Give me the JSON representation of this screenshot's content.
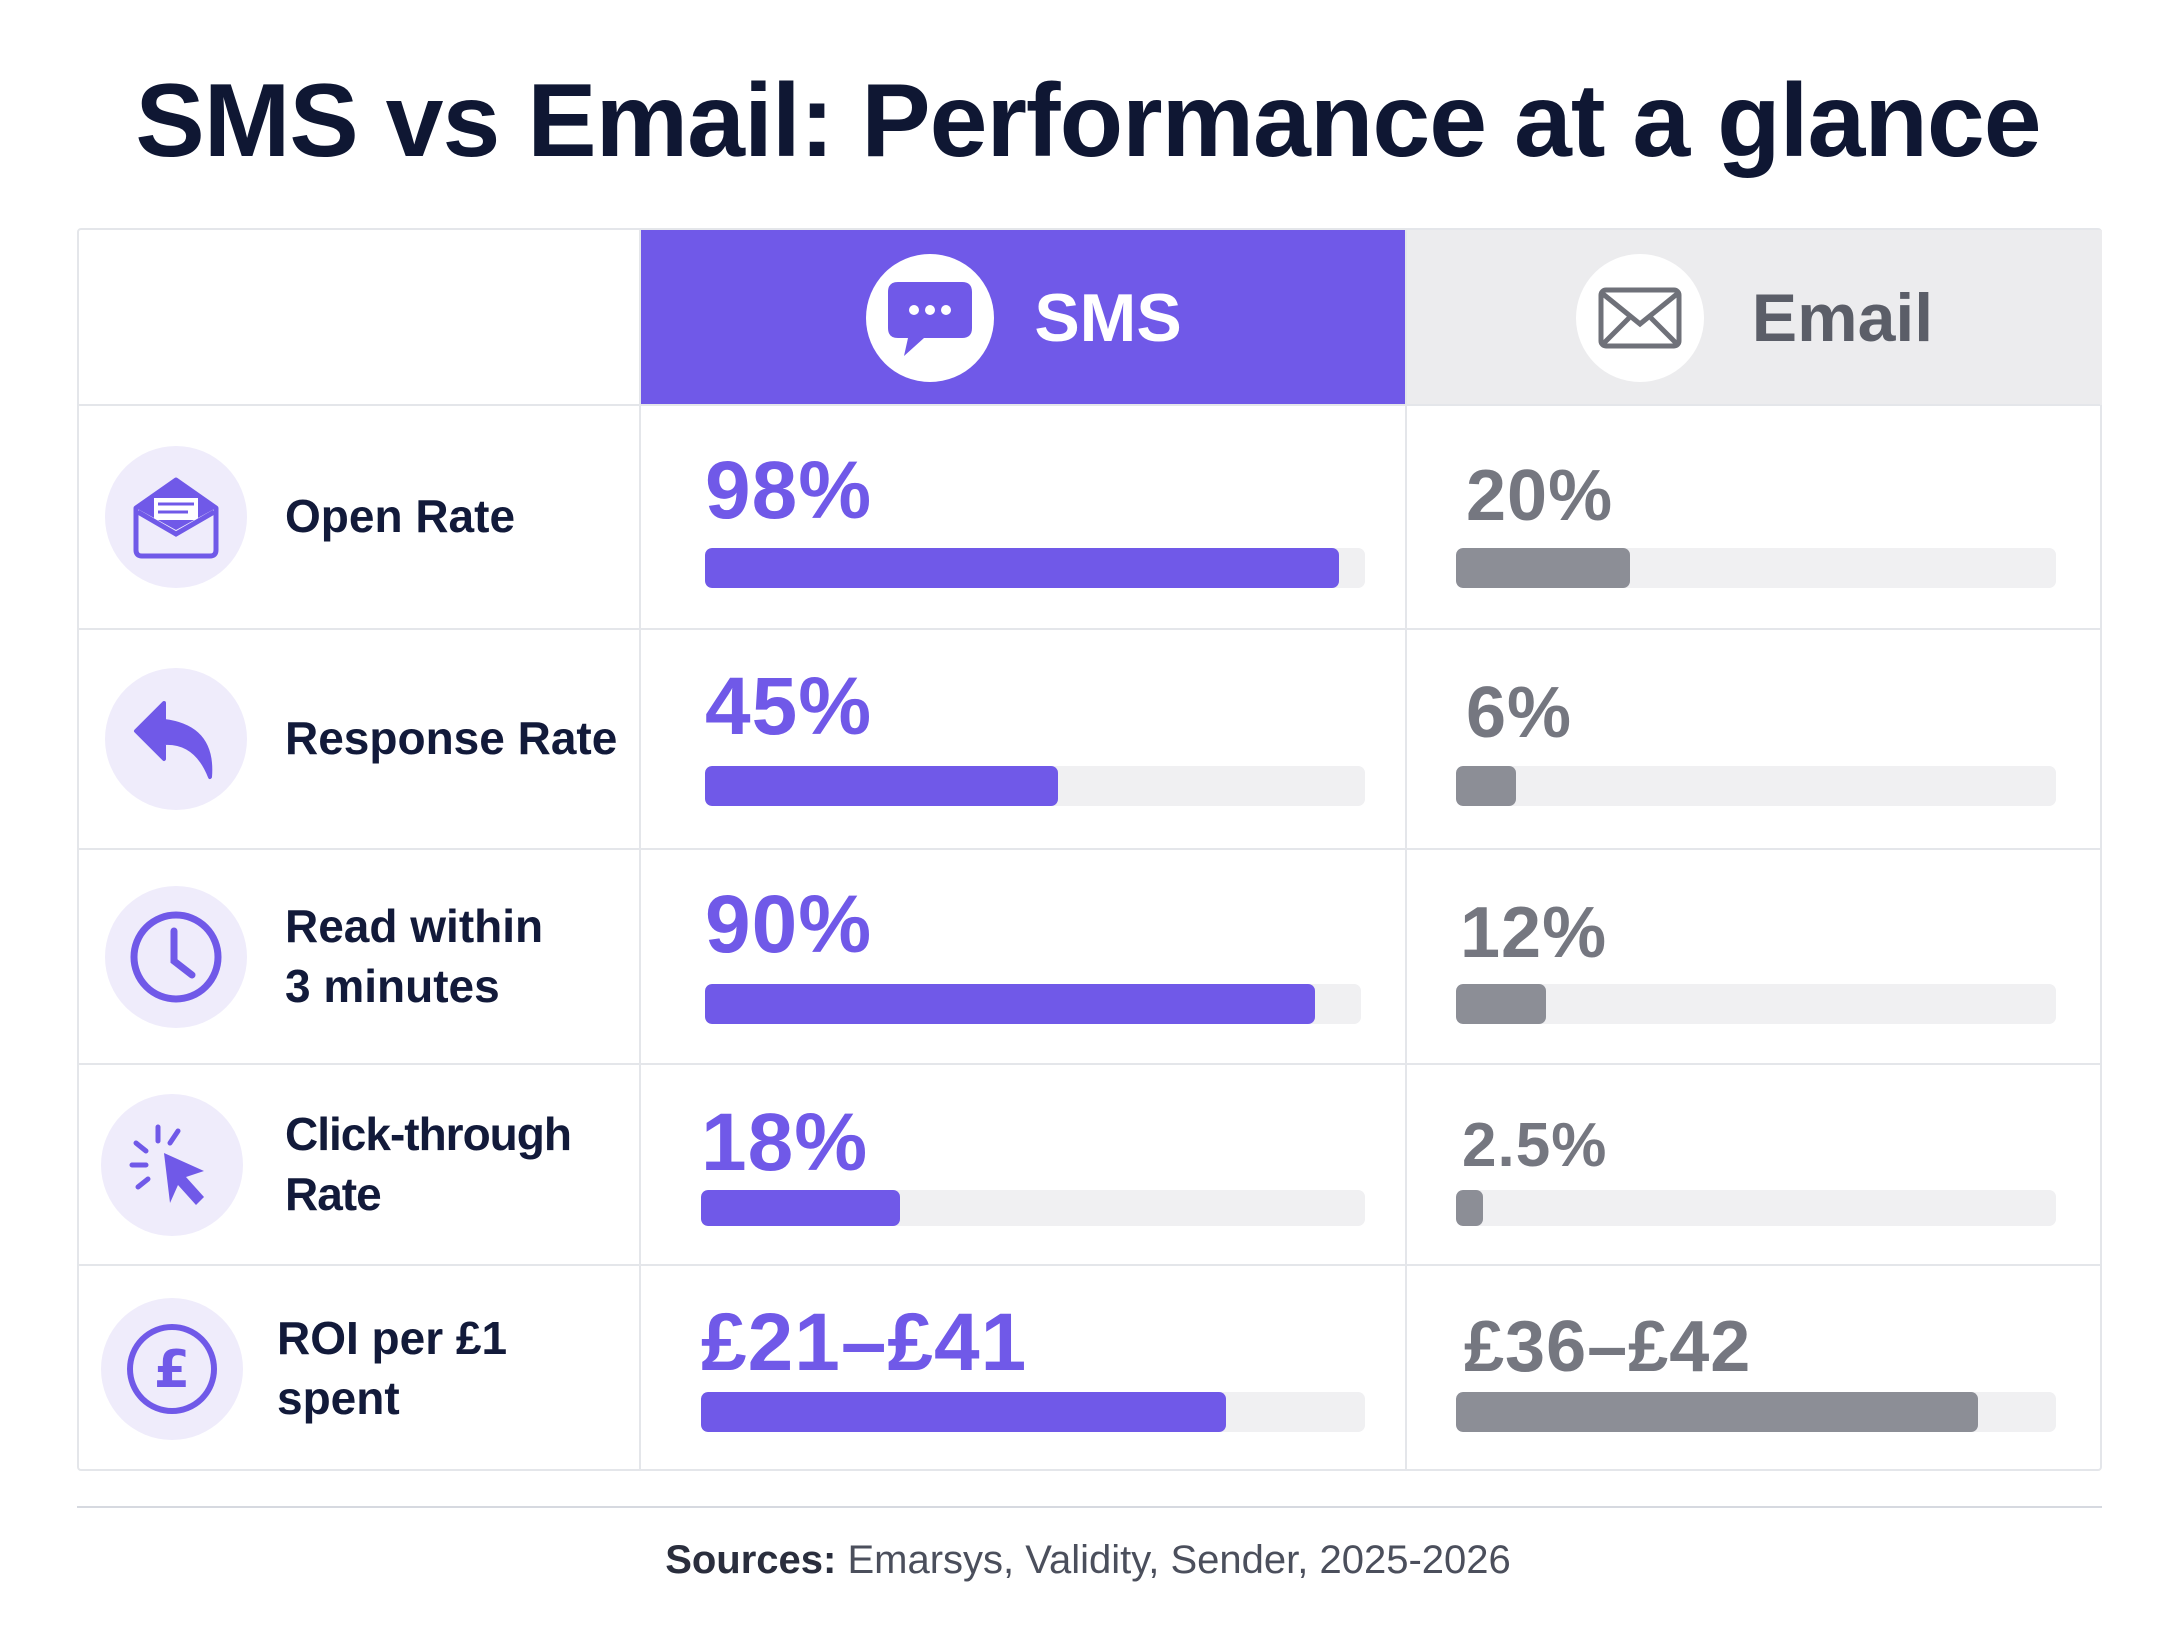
{
  "title": "SMS vs Email: Performance at a glance",
  "columns": {
    "sms": {
      "label": "SMS",
      "icon": "chat-bubble-icon",
      "color": "#7059e8"
    },
    "email": {
      "label": "Email",
      "icon": "envelope-icon",
      "color": "#8c8e96"
    }
  },
  "rows": [
    {
      "label": "Open Rate",
      "icon": "open-envelope-icon",
      "sms": "98%",
      "email": "20%"
    },
    {
      "label": "Response Rate",
      "icon": "reply-arrow-icon",
      "sms": "45%",
      "email": "6%"
    },
    {
      "label_line1": "Read within",
      "label_line2": "3 minutes",
      "icon": "clock-icon",
      "sms": "90%",
      "email": "12%"
    },
    {
      "label": "Click-through Rate",
      "icon": "cursor-click-icon",
      "sms": "18%",
      "email": "2.5%"
    },
    {
      "label": "ROI per £1 spent",
      "icon": "pound-coin-icon",
      "sms": "£21–£41",
      "email": "£36–£42"
    }
  ],
  "chart_data": {
    "type": "bar",
    "title": "SMS vs Email: Performance at a glance",
    "categories": [
      "Open Rate",
      "Response Rate",
      "Read within 3 minutes",
      "Click-through Rate",
      "ROI per £1 spent"
    ],
    "series": [
      {
        "name": "SMS",
        "values": [
          98,
          45,
          90,
          18,
          31
        ],
        "bar_fraction": [
          0.96,
          0.535,
          0.93,
          0.3,
          0.79
        ]
      },
      {
        "name": "Email",
        "values": [
          20,
          6,
          12,
          2.5,
          39
        ],
        "bar_fraction": [
          0.29,
          0.1,
          0.15,
          0.045,
          0.87
        ]
      }
    ]
  },
  "footer": {
    "sources_label": "Sources:",
    "sources_text": " Emarsys, Validity, Sender, 2025-2026"
  }
}
